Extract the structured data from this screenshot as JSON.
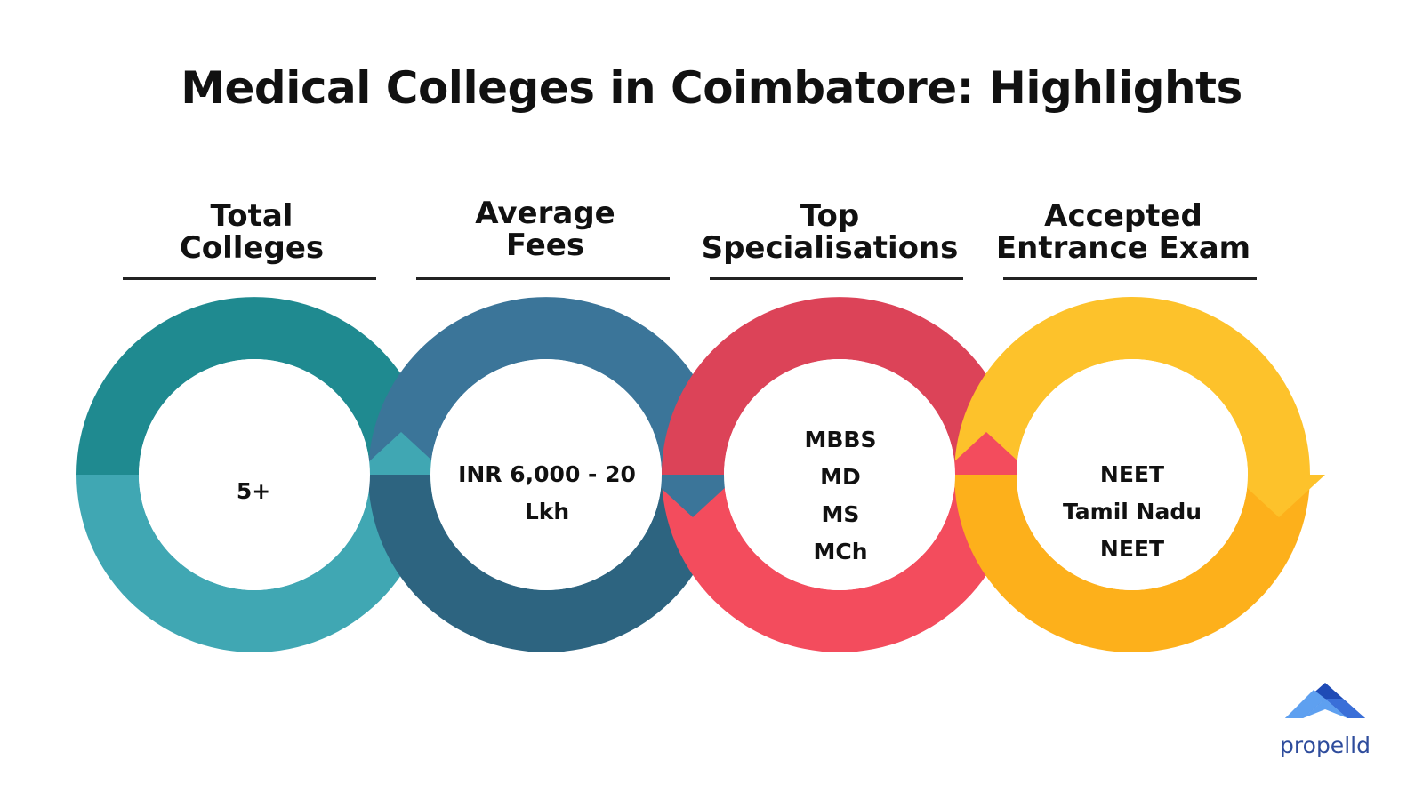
{
  "title": "Medical Colleges in Coimbatore: Highlights",
  "columns": [
    {
      "heading": [
        "Total",
        "Colleges"
      ],
      "values": [
        "5+"
      ],
      "colors": {
        "dark": "#1f8a90",
        "light": "#40a7b3"
      }
    },
    {
      "heading": [
        "Average",
        "Fees"
      ],
      "values": [
        "INR 6,000 - 20",
        "Lkh"
      ],
      "colors": {
        "dark": "#3b7599",
        "light": "#2d6480"
      }
    },
    {
      "heading": [
        "Top",
        "Specialisations"
      ],
      "values": [
        "MBBS",
        "MD",
        "MS",
        "MCh"
      ],
      "colors": {
        "dark": "#dc4358",
        "light": "#f34c5d"
      }
    },
    {
      "heading": [
        "Accepted",
        "Entrance Exam"
      ],
      "values": [
        "NEET",
        "Tamil Nadu NEET"
      ],
      "colors": {
        "dark": "#fdc22b",
        "light": "#fdb01b"
      }
    }
  ],
  "logo": {
    "text": "propelld",
    "colors": [
      "#3a6fd8",
      "#1f4bb6",
      "#5ea0f0"
    ]
  }
}
